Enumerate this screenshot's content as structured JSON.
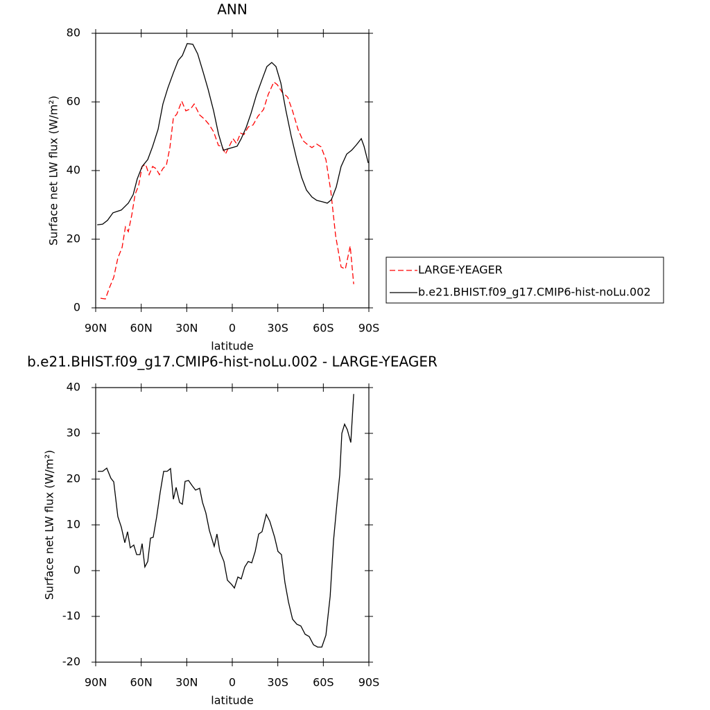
{
  "chart_data": [
    {
      "type": "line",
      "title": "ANN",
      "xlabel": "latitude",
      "ylabel": "Surface net LW flux (W/m²)",
      "xlim": [
        90,
        -90
      ],
      "xticks": [
        {
          "value": 90,
          "label": "90N"
        },
        {
          "value": 60,
          "label": "60N"
        },
        {
          "value": 30,
          "label": "30N"
        },
        0,
        {
          "value": -30,
          "label": "30S"
        },
        {
          "value": -60,
          "label": "60S"
        },
        {
          "value": -90,
          "label": "90S"
        }
      ],
      "ylim": [
        0,
        80
      ],
      "yticks": [
        0,
        20,
        40,
        60,
        80
      ],
      "legend": "right",
      "series": [
        {
          "name": "LARGE-YEAGER",
          "color": "#ff0000",
          "linestyle": "dashed",
          "x": [
            86.8,
            83.6,
            80.9,
            78.1,
            75.4,
            72.6,
            70.4,
            68.5,
            66.2,
            64,
            61.7,
            59.4,
            57.1,
            54.8,
            52.5,
            50.3,
            48,
            45.7,
            43.4,
            41.1,
            38.8,
            36.6,
            33.3,
            30.6,
            27.4,
            25.1,
            21.5,
            18.3,
            15.1,
            12.3,
            9.1,
            6.8,
            4.5,
            2.2,
            -0.5,
            -2.7,
            -5.5,
            -7.7,
            -10.5,
            -13.7,
            -16.9,
            -20.6,
            -23.7,
            -27.4,
            -29.7,
            -32.9,
            -36.5,
            -39.7,
            -43.4,
            -46.6,
            -50.3,
            -52.5,
            -55.7,
            -58.5,
            -61.7,
            -64.9,
            -68.1,
            -71.7,
            -74.5,
            -77.7,
            -80
          ],
          "values": [
            2.8,
            2.6,
            5.9,
            8.9,
            14.5,
            17.6,
            23.6,
            22.2,
            27.1,
            33.1,
            35.6,
            41.2,
            41.8,
            38.8,
            41.2,
            40.6,
            38.8,
            40.6,
            41.6,
            46.7,
            55.4,
            56.4,
            60.2,
            57.4,
            58,
            59.4,
            56.2,
            55,
            53.3,
            51.3,
            47.3,
            47.1,
            44.8,
            46.9,
            49.3,
            47.9,
            50.9,
            50.5,
            52.7,
            53.3,
            55.8,
            57.8,
            62.2,
            65.8,
            65,
            62.8,
            61.4,
            57.4,
            51.9,
            48.7,
            47.3,
            46.7,
            47.7,
            46.9,
            43.2,
            34.1,
            21,
            11.9,
            11.3,
            18,
            6.9
          ]
        },
        {
          "name": "b.e21.BHIST.f09_g17.CMIP6-hist-noLu.002",
          "color": "#000000",
          "linestyle": "solid",
          "x": [
            89,
            85.4,
            82.2,
            78.6,
            73.1,
            68.5,
            65.3,
            62.6,
            59.4,
            55.7,
            52.5,
            48.9,
            45.7,
            42.5,
            38.8,
            35.6,
            32.9,
            29.7,
            26,
            22.8,
            19.2,
            16,
            12.3,
            9.1,
            5.9,
            3.2,
            0,
            -3.2,
            -5.9,
            -9.1,
            -12.3,
            -15.9,
            -19.6,
            -22.8,
            -26,
            -28.8,
            -32,
            -35.2,
            -38.8,
            -42.5,
            -45.7,
            -48.9,
            -52.5,
            -55.7,
            -59.4,
            -62.6,
            -65.3,
            -68.5,
            -71.7,
            -75.4,
            -78.6,
            -81.8,
            -85,
            -86.8,
            -89.6
          ],
          "values": [
            24.2,
            24.4,
            25.5,
            27.7,
            28.5,
            30.5,
            33,
            37.6,
            41.2,
            43.2,
            47,
            52,
            59.4,
            64,
            68.5,
            72.1,
            73.5,
            77,
            76.8,
            74,
            68.7,
            63.8,
            57.4,
            50.7,
            45.9,
            46.3,
            46.7,
            47.1,
            49.3,
            52.5,
            56.6,
            62,
            66.5,
            70.3,
            71.5,
            70.3,
            65.5,
            57.8,
            50.1,
            43.2,
            38,
            34.3,
            32.3,
            31.3,
            30.9,
            30.5,
            31.5,
            35.2,
            41.2,
            44.8,
            45.9,
            47.5,
            49.3,
            47.1,
            42.2
          ]
        }
      ]
    },
    {
      "type": "line",
      "title": "b.e21.BHIST.f09_g17.CMIP6-hist-noLu.002 - LARGE-YEAGER",
      "xlabel": "latitude",
      "ylabel": "Surface net LW flux (W/m²)",
      "xlim": [
        90,
        -90
      ],
      "xticks": [
        {
          "value": 90,
          "label": "90N"
        },
        {
          "value": 60,
          "label": "60N"
        },
        {
          "value": 30,
          "label": "30N"
        },
        0,
        {
          "value": -30,
          "label": "30S"
        },
        {
          "value": -60,
          "label": "60S"
        },
        {
          "value": -90,
          "label": "90S"
        }
      ],
      "ylim": [
        -20,
        40
      ],
      "yticks": [
        -20,
        -10,
        0,
        10,
        20,
        30,
        40
      ],
      "series": [
        {
          "color": "#000000",
          "linestyle": "solid",
          "x": [
            88.6,
            85.4,
            82.7,
            80,
            78.1,
            75.4,
            73.1,
            70.8,
            69,
            67.2,
            64.9,
            63,
            60.8,
            59.4,
            57.6,
            55.7,
            53.9,
            52.1,
            49.8,
            47.5,
            45.2,
            42.9,
            40.7,
            38.8,
            37,
            34.7,
            32.9,
            31.1,
            28.8,
            26.5,
            24.2,
            21.5,
            19.6,
            17.4,
            15.1,
            11.9,
            10.1,
            8.2,
            5.5,
            3.2,
            0.5,
            -1.4,
            -3.7,
            -5.9,
            -8.2,
            -10.5,
            -12.8,
            -15.1,
            -17.4,
            -19.6,
            -22.4,
            -24.7,
            -27.9,
            -30.1,
            -32.4,
            -34.7,
            -37,
            -39.7,
            -42.5,
            -45.2,
            -48,
            -50.7,
            -53.5,
            -56.2,
            -59,
            -61.7,
            -64.5,
            -66.7,
            -69,
            -70.8,
            -72.2,
            -74,
            -75.8,
            -78.1,
            -80
          ],
          "values": [
            21.7,
            21.7,
            22.4,
            20.2,
            19.4,
            11.8,
            9.5,
            6.1,
            8.5,
            5,
            5.6,
            3.5,
            3.5,
            5.9,
            0.8,
            2,
            7.1,
            7.3,
            11.8,
            17.1,
            21.7,
            21.7,
            22.3,
            15.6,
            18.2,
            14.9,
            14.5,
            19.5,
            19.7,
            18.6,
            17.6,
            18,
            14.9,
            12.6,
            8.8,
            5.3,
            8,
            4.2,
            2,
            -2.1,
            -3,
            -3.8,
            -1.4,
            -1.8,
            0.8,
            2,
            1.7,
            4.2,
            8,
            8.5,
            12.3,
            10.8,
            7.3,
            4.2,
            3.5,
            -2.6,
            -6.8,
            -10.6,
            -11.7,
            -12.1,
            -13.9,
            -14.4,
            -16.2,
            -16.7,
            -16.7,
            -14.1,
            -5.6,
            6.5,
            14.8,
            20.9,
            30,
            32,
            30.8,
            28,
            38.6
          ]
        }
      ]
    }
  ]
}
